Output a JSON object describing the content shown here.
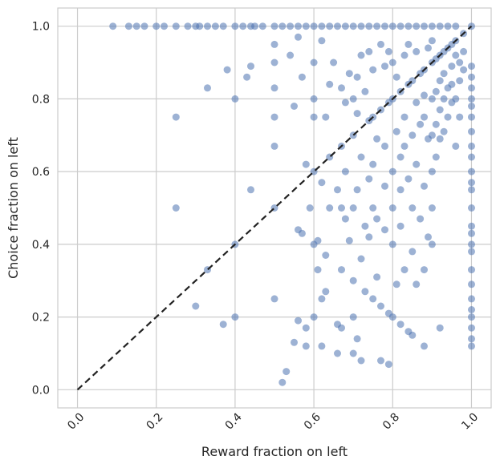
{
  "chart_data": {
    "type": "scatter",
    "title": "",
    "xlabel": "Reward fraction on left",
    "ylabel": "Choice fraction on left",
    "xlim": [
      -0.05,
      1.05
    ],
    "ylim": [
      -0.05,
      1.05
    ],
    "xticks": [
      "0.0",
      "0.2",
      "0.4",
      "0.6",
      "0.8",
      "1.0"
    ],
    "yticks": [
      "0.0",
      "0.2",
      "0.4",
      "0.6",
      "0.8",
      "1.0"
    ],
    "grid": true,
    "point_color": "#4c72b0",
    "point_alpha": 0.55,
    "reference_line": {
      "x": [
        0,
        1
      ],
      "y": [
        0,
        1
      ],
      "style": "dashed",
      "color": "#222222"
    },
    "series": [
      {
        "points": [
          [
            0.09,
            1.0
          ],
          [
            0.13,
            1.0
          ],
          [
            0.15,
            1.0
          ],
          [
            0.17,
            1.0
          ],
          [
            0.2,
            1.0
          ],
          [
            0.22,
            1.0
          ],
          [
            0.25,
            1.0
          ],
          [
            0.28,
            1.0
          ],
          [
            0.3,
            1.0
          ],
          [
            0.31,
            1.0
          ],
          [
            0.33,
            1.0
          ],
          [
            0.35,
            1.0
          ],
          [
            0.37,
            1.0
          ],
          [
            0.4,
            1.0
          ],
          [
            0.42,
            1.0
          ],
          [
            0.44,
            1.0
          ],
          [
            0.45,
            1.0
          ],
          [
            0.47,
            1.0
          ],
          [
            0.5,
            1.0
          ],
          [
            0.52,
            1.0
          ],
          [
            0.54,
            1.0
          ],
          [
            0.56,
            1.0
          ],
          [
            0.58,
            1.0
          ],
          [
            0.6,
            1.0
          ],
          [
            0.62,
            1.0
          ],
          [
            0.64,
            1.0
          ],
          [
            0.66,
            1.0
          ],
          [
            0.68,
            1.0
          ],
          [
            0.7,
            1.0
          ],
          [
            0.72,
            1.0
          ],
          [
            0.74,
            1.0
          ],
          [
            0.76,
            1.0
          ],
          [
            0.78,
            1.0
          ],
          [
            0.8,
            1.0
          ],
          [
            0.82,
            1.0
          ],
          [
            0.84,
            1.0
          ],
          [
            0.86,
            1.0
          ],
          [
            0.88,
            1.0
          ],
          [
            0.9,
            1.0
          ],
          [
            0.92,
            1.0
          ],
          [
            0.94,
            1.0
          ],
          [
            0.96,
            1.0
          ],
          [
            1.0,
            1.0
          ],
          [
            0.25,
            0.75
          ],
          [
            0.25,
            0.5
          ],
          [
            0.3,
            0.23
          ],
          [
            0.33,
            0.33
          ],
          [
            0.33,
            0.83
          ],
          [
            0.37,
            0.18
          ],
          [
            0.38,
            0.88
          ],
          [
            0.4,
            0.8
          ],
          [
            0.4,
            0.4
          ],
          [
            0.4,
            0.2
          ],
          [
            0.43,
            0.86
          ],
          [
            0.44,
            0.55
          ],
          [
            0.44,
            0.89
          ],
          [
            0.5,
            0.5
          ],
          [
            0.5,
            0.75
          ],
          [
            0.5,
            0.25
          ],
          [
            0.5,
            0.67
          ],
          [
            0.5,
            0.9
          ],
          [
            0.5,
            0.83
          ],
          [
            0.5,
            0.95
          ],
          [
            0.52,
            0.02
          ],
          [
            0.53,
            0.05
          ],
          [
            0.54,
            0.92
          ],
          [
            0.55,
            0.13
          ],
          [
            0.55,
            0.78
          ],
          [
            0.56,
            0.44
          ],
          [
            0.56,
            0.19
          ],
          [
            0.56,
            0.97
          ],
          [
            0.57,
            0.43
          ],
          [
            0.57,
            0.86
          ],
          [
            0.58,
            0.17
          ],
          [
            0.58,
            0.12
          ],
          [
            0.58,
            0.62
          ],
          [
            0.59,
            0.5
          ],
          [
            0.6,
            0.8
          ],
          [
            0.6,
            0.6
          ],
          [
            0.6,
            0.4
          ],
          [
            0.6,
            0.2
          ],
          [
            0.6,
            0.9
          ],
          [
            0.6,
            0.75
          ],
          [
            0.61,
            0.41
          ],
          [
            0.61,
            0.33
          ],
          [
            0.62,
            0.57
          ],
          [
            0.62,
            0.25
          ],
          [
            0.62,
            0.12
          ],
          [
            0.62,
            0.96
          ],
          [
            0.63,
            0.75
          ],
          [
            0.63,
            0.37
          ],
          [
            0.63,
            0.27
          ],
          [
            0.64,
            0.5
          ],
          [
            0.64,
            0.84
          ],
          [
            0.64,
            0.64
          ],
          [
            0.65,
            0.9
          ],
          [
            0.66,
            0.1
          ],
          [
            0.66,
            0.18
          ],
          [
            0.66,
            0.55
          ],
          [
            0.67,
            0.67
          ],
          [
            0.67,
            0.33
          ],
          [
            0.67,
            0.83
          ],
          [
            0.67,
            0.5
          ],
          [
            0.67,
            0.17
          ],
          [
            0.68,
            0.79
          ],
          [
            0.68,
            0.6
          ],
          [
            0.68,
            0.47
          ],
          [
            0.69,
            0.41
          ],
          [
            0.69,
            0.87
          ],
          [
            0.7,
            0.7
          ],
          [
            0.7,
            0.3
          ],
          [
            0.7,
            0.1
          ],
          [
            0.7,
            0.5
          ],
          [
            0.7,
            0.2
          ],
          [
            0.7,
            0.8
          ],
          [
            0.71,
            0.76
          ],
          [
            0.71,
            0.55
          ],
          [
            0.71,
            0.14
          ],
          [
            0.71,
            0.86
          ],
          [
            0.72,
            0.92
          ],
          [
            0.72,
            0.64
          ],
          [
            0.72,
            0.36
          ],
          [
            0.72,
            0.08
          ],
          [
            0.73,
            0.82
          ],
          [
            0.73,
            0.45
          ],
          [
            0.73,
            0.27
          ],
          [
            0.74,
            0.74
          ],
          [
            0.74,
            0.58
          ],
          [
            0.74,
            0.42
          ],
          [
            0.74,
            0.93
          ],
          [
            0.75,
            0.75
          ],
          [
            0.75,
            0.5
          ],
          [
            0.75,
            0.25
          ],
          [
            0.75,
            0.88
          ],
          [
            0.75,
            0.62
          ],
          [
            0.76,
            0.69
          ],
          [
            0.76,
            0.31
          ],
          [
            0.76,
            0.47
          ],
          [
            0.77,
            0.77
          ],
          [
            0.77,
            0.23
          ],
          [
            0.77,
            0.08
          ],
          [
            0.77,
            0.95
          ],
          [
            0.78,
            0.56
          ],
          [
            0.78,
            0.89
          ],
          [
            0.78,
            0.67
          ],
          [
            0.78,
            0.44
          ],
          [
            0.79,
            0.79
          ],
          [
            0.79,
            0.21
          ],
          [
            0.79,
            0.07
          ],
          [
            0.79,
            0.93
          ],
          [
            0.8,
            0.8
          ],
          [
            0.8,
            0.6
          ],
          [
            0.8,
            0.4
          ],
          [
            0.8,
            0.2
          ],
          [
            0.8,
            0.5
          ],
          [
            0.8,
            0.9
          ],
          [
            0.81,
            0.71
          ],
          [
            0.81,
            0.29
          ],
          [
            0.81,
            0.86
          ],
          [
            0.82,
            0.82
          ],
          [
            0.82,
            0.64
          ],
          [
            0.82,
            0.55
          ],
          [
            0.82,
            0.45
          ],
          [
            0.82,
            0.18
          ],
          [
            0.83,
            0.75
          ],
          [
            0.83,
            0.92
          ],
          [
            0.83,
            0.33
          ],
          [
            0.83,
            0.67
          ],
          [
            0.84,
            0.58
          ],
          [
            0.84,
            0.84
          ],
          [
            0.84,
            0.16
          ],
          [
            0.84,
            0.95
          ],
          [
            0.85,
            0.85
          ],
          [
            0.85,
            0.7
          ],
          [
            0.85,
            0.5
          ],
          [
            0.85,
            0.15
          ],
          [
            0.85,
            0.38
          ],
          [
            0.86,
            0.62
          ],
          [
            0.86,
            0.29
          ],
          [
            0.86,
            0.79
          ],
          [
            0.86,
            0.93
          ],
          [
            0.87,
            0.87
          ],
          [
            0.87,
            0.73
          ],
          [
            0.87,
            0.47
          ],
          [
            0.88,
            0.88
          ],
          [
            0.88,
            0.75
          ],
          [
            0.88,
            0.56
          ],
          [
            0.88,
            0.33
          ],
          [
            0.88,
            0.12
          ],
          [
            0.88,
            0.81
          ],
          [
            0.89,
            0.69
          ],
          [
            0.89,
            0.94
          ],
          [
            0.89,
            0.42
          ],
          [
            0.9,
            0.9
          ],
          [
            0.9,
            0.8
          ],
          [
            0.9,
            0.7
          ],
          [
            0.9,
            0.6
          ],
          [
            0.9,
            0.5
          ],
          [
            0.9,
            0.4
          ],
          [
            0.9,
            0.96
          ],
          [
            0.91,
            0.82
          ],
          [
            0.91,
            0.64
          ],
          [
            0.91,
            0.91
          ],
          [
            0.91,
            0.73
          ],
          [
            0.92,
            0.85
          ],
          [
            0.92,
            0.77
          ],
          [
            0.92,
            0.69
          ],
          [
            0.92,
            0.17
          ],
          [
            0.92,
            0.92
          ],
          [
            0.93,
            0.93
          ],
          [
            0.93,
            0.8
          ],
          [
            0.93,
            0.87
          ],
          [
            0.93,
            0.71
          ],
          [
            0.94,
            0.83
          ],
          [
            0.94,
            0.94
          ],
          [
            0.94,
            0.75
          ],
          [
            0.95,
            0.89
          ],
          [
            0.95,
            0.95
          ],
          [
            0.95,
            0.79
          ],
          [
            0.95,
            0.84
          ],
          [
            0.96,
            0.8
          ],
          [
            0.96,
            0.92
          ],
          [
            0.96,
            0.67
          ],
          [
            0.96,
            0.96
          ],
          [
            0.97,
            0.9
          ],
          [
            0.97,
            0.85
          ],
          [
            0.97,
            0.75
          ],
          [
            0.98,
            0.98
          ],
          [
            0.98,
            0.93
          ],
          [
            0.98,
            0.88
          ],
          [
            1.0,
            0.89
          ],
          [
            1.0,
            0.86
          ],
          [
            1.0,
            0.83
          ],
          [
            1.0,
            0.8
          ],
          [
            1.0,
            0.78
          ],
          [
            1.0,
            0.75
          ],
          [
            1.0,
            0.71
          ],
          [
            1.0,
            0.67
          ],
          [
            1.0,
            0.64
          ],
          [
            1.0,
            0.6
          ],
          [
            1.0,
            0.57
          ],
          [
            1.0,
            0.55
          ],
          [
            1.0,
            0.5
          ],
          [
            1.0,
            0.45
          ],
          [
            1.0,
            0.43
          ],
          [
            1.0,
            0.4
          ],
          [
            1.0,
            0.38
          ],
          [
            1.0,
            0.33
          ],
          [
            1.0,
            0.29
          ],
          [
            1.0,
            0.25
          ],
          [
            1.0,
            0.22
          ],
          [
            1.0,
            0.2
          ],
          [
            1.0,
            0.17
          ],
          [
            1.0,
            0.14
          ],
          [
            1.0,
            0.12
          ]
        ]
      }
    ]
  }
}
